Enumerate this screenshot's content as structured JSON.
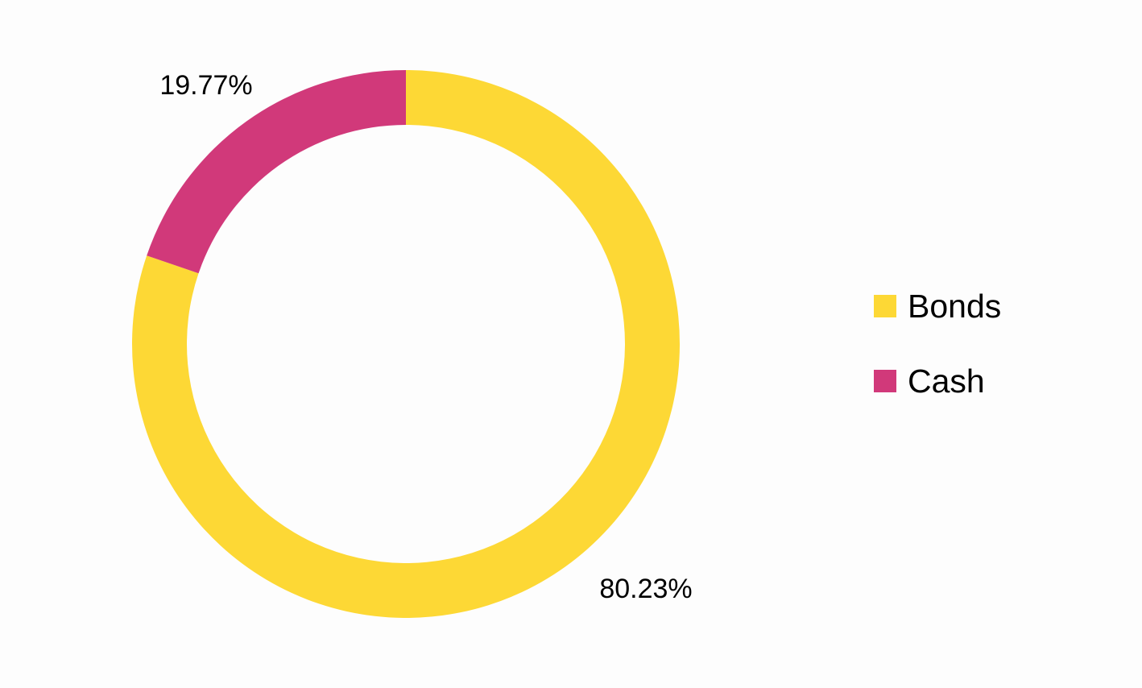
{
  "chart_data": {
    "type": "pie",
    "variant": "donut",
    "title": "",
    "categories": [
      "Bonds",
      "Cash"
    ],
    "values": [
      80.23,
      19.77
    ],
    "value_labels": [
      "80.23%",
      "19.77%"
    ],
    "colors": [
      "#FDD835",
      "#D1397A"
    ],
    "legend": {
      "position": "right",
      "entries": [
        {
          "label": "Bonds",
          "color": "#FDD835"
        },
        {
          "label": "Cash",
          "color": "#D1397A"
        }
      ]
    }
  }
}
